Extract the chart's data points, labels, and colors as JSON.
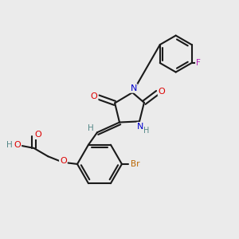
{
  "background_color": "#ebebeb",
  "bond_color": "#1a1a1a",
  "atom_colors": {
    "O": "#dd0000",
    "N": "#0000cc",
    "Br": "#bb6600",
    "F": "#bb22bb",
    "H": "#558888",
    "C": "#1a1a1a"
  },
  "figsize": [
    3.0,
    3.0
  ],
  "dpi": 100
}
